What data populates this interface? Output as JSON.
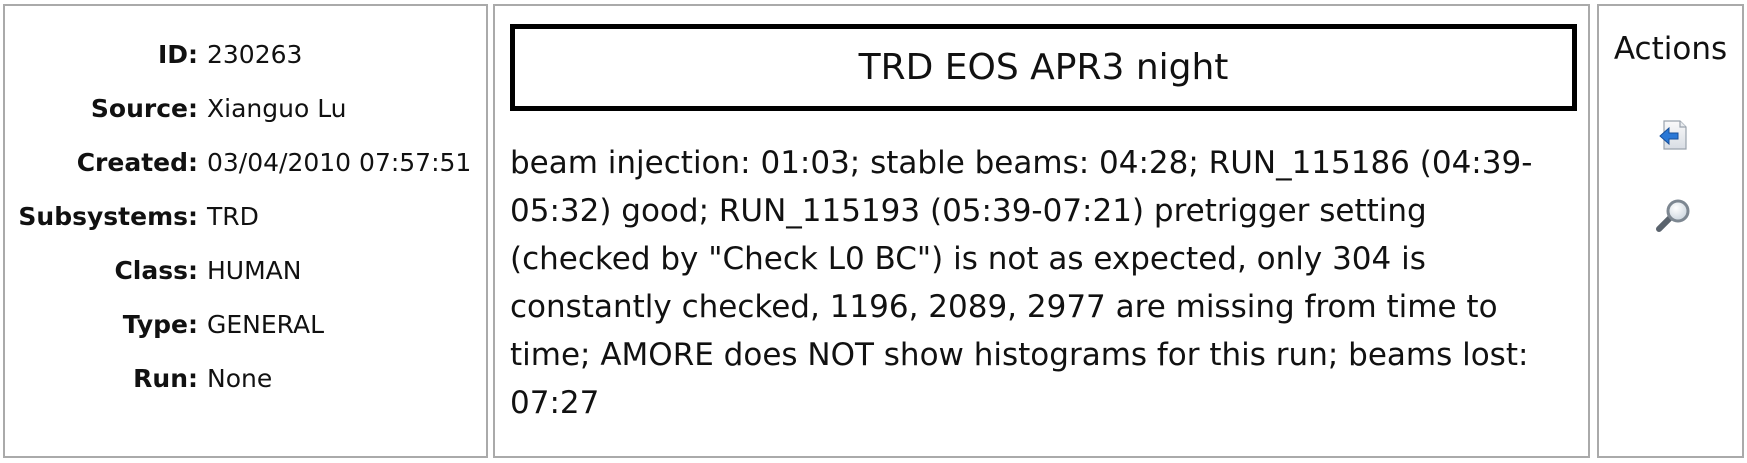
{
  "meta": {
    "rows": [
      {
        "label": "ID:",
        "value": "230263"
      },
      {
        "label": "Source:",
        "value": "Xianguo Lu"
      },
      {
        "label": "Created:",
        "value": "03/04/2010 07:57:51"
      },
      {
        "label": "Subsystems:",
        "value": "TRD"
      },
      {
        "label": "Class:",
        "value": "HUMAN"
      },
      {
        "label": "Type:",
        "value": "GENERAL"
      },
      {
        "label": "Run:",
        "value": "None"
      }
    ]
  },
  "entry": {
    "title": "TRD EOS APR3 night",
    "body": "beam injection: 01:03; stable beams: 04:28; RUN_115186 (04:39-05:32) good; RUN_115193 (05:39-07:21) pretrigger setting (checked by \"Check L0 BC\") is not as expected, only 304 is constantly checked, 1196, 2089, 2977 are missing from time to time; AMORE does NOT show histograms for this run; beams lost: 07:27"
  },
  "actions": {
    "title": "Actions",
    "icons": [
      "back-arrow-icon",
      "magnifier-icon"
    ]
  },
  "colors": {
    "panel_border": "#aaaaaa",
    "title_border": "#000000",
    "icon_blue": "#2a78d6"
  }
}
